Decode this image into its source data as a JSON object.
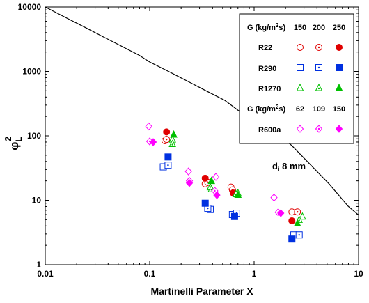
{
  "chart_data": {
    "type": "scatter",
    "xlabel": "Martinelli Parameter X",
    "ylabel_symbol": "φ",
    "ylabel_subscript": "L",
    "ylabel_superscript": "2",
    "xscale": "log",
    "yscale": "log",
    "xlim": [
      0.01,
      10
    ],
    "ylim": [
      1,
      10000
    ],
    "x_ticks": [
      {
        "value": 0.01,
        "label": "0.01"
      },
      {
        "value": 0.1,
        "label": "0.1"
      },
      {
        "value": 1,
        "label": "1"
      },
      {
        "value": 10,
        "label": "10"
      }
    ],
    "y_ticks": [
      {
        "value": 1,
        "label": "1"
      },
      {
        "value": 10,
        "label": "10"
      },
      {
        "value": 100,
        "label": "100"
      },
      {
        "value": 1000,
        "label": "1000"
      },
      {
        "value": 10000,
        "label": "10000"
      }
    ],
    "annotation": {
      "main": "d",
      "sub": "i",
      "rest": " 8 mm"
    },
    "curve": {
      "color": "#000000",
      "points": [
        [
          0.01,
          10000
        ],
        [
          0.0151,
          7079
        ],
        [
          0.0229,
          5012
        ],
        [
          0.0346,
          3548
        ],
        [
          0.0525,
          2512
        ],
        [
          0.0794,
          1778
        ],
        [
          0.1,
          1400
        ],
        [
          0.1513,
          1000
        ],
        [
          0.229,
          708
        ],
        [
          0.346,
          501
        ],
        [
          0.525,
          355
        ],
        [
          0.794,
          214
        ],
        [
          1.0,
          182
        ],
        [
          1.514,
          120
        ],
        [
          2.291,
          71
        ],
        [
          3.467,
          35.5
        ],
        [
          5.248,
          17.8
        ],
        [
          7.943,
          8.1
        ],
        [
          10.0,
          5.9
        ]
      ]
    },
    "legend": {
      "placement": "top-right",
      "header1": {
        "g": "G (kg/m",
        "sup": "2",
        "tail": "s)",
        "values": [
          "150",
          "200",
          "250"
        ]
      },
      "header2": {
        "g": "G (kg/m",
        "sup": "2",
        "tail": "s)",
        "values": [
          "62",
          "109",
          "150"
        ]
      },
      "rows": [
        {
          "name": "R22",
          "color": "#e00000",
          "shapes": [
            "circle-open",
            "circle-dot",
            "circle-filled"
          ]
        },
        {
          "name": "R290",
          "color": "#0030e0",
          "shapes": [
            "square-open",
            "square-dot",
            "square-filled"
          ]
        },
        {
          "name": "R1270",
          "color": "#00c000",
          "shapes": [
            "triangle-open",
            "triangle-dot",
            "triangle-filled"
          ]
        },
        {
          "name": "R600a",
          "color": "#ff00ff",
          "shapes": [
            "diamond-open",
            "diamond-dot",
            "diamond-filled"
          ]
        }
      ]
    },
    "series": [
      {
        "fluid": "R22",
        "G": "150",
        "color": "#e00000",
        "marker": "circle-open",
        "points": [
          [
            0.14,
            84
          ],
          [
            0.34,
            18
          ],
          [
            0.6,
            16
          ],
          [
            2.3,
            6.6
          ]
        ]
      },
      {
        "fluid": "R22",
        "G": "200",
        "color": "#e00000",
        "marker": "circle-dot",
        "points": [
          [
            0.145,
            88
          ],
          [
            0.36,
            19
          ],
          [
            0.62,
            14.5
          ],
          [
            2.6,
            6.6
          ]
        ]
      },
      {
        "fluid": "R22",
        "G": "250",
        "color": "#e00000",
        "marker": "circle-filled",
        "points": [
          [
            0.145,
            115
          ],
          [
            0.34,
            22
          ],
          [
            0.63,
            13
          ],
          [
            2.3,
            4.8
          ]
        ]
      },
      {
        "fluid": "R290",
        "G": "150",
        "color": "#0030e0",
        "marker": "square-open",
        "points": [
          [
            0.135,
            33
          ],
          [
            0.38,
            7.2
          ],
          [
            0.62,
            6
          ],
          [
            2.4,
            2.9
          ]
        ]
      },
      {
        "fluid": "R290",
        "G": "200",
        "color": "#0030e0",
        "marker": "square-dot",
        "points": [
          [
            0.15,
            35
          ],
          [
            0.36,
            7.5
          ],
          [
            0.68,
            6.3
          ],
          [
            2.7,
            2.9
          ]
        ]
      },
      {
        "fluid": "R290",
        "G": "250",
        "color": "#0030e0",
        "marker": "square-filled",
        "points": [
          [
            0.15,
            47
          ],
          [
            0.34,
            9
          ],
          [
            0.65,
            5.6
          ],
          [
            2.3,
            2.5
          ]
        ]
      },
      {
        "fluid": "R1270",
        "G": "150",
        "color": "#00c000",
        "marker": "triangle-open",
        "points": [
          [
            0.165,
            88
          ],
          [
            0.38,
            16
          ],
          [
            0.7,
            13
          ],
          [
            2.9,
            5.6
          ]
        ]
      },
      {
        "fluid": "R1270",
        "G": "200",
        "color": "#00c000",
        "marker": "triangle-dot",
        "points": [
          [
            0.165,
            75
          ],
          [
            0.39,
            15
          ],
          [
            0.67,
            12.5
          ],
          [
            2.7,
            5.0
          ]
        ]
      },
      {
        "fluid": "R1270",
        "G": "250",
        "color": "#00c000",
        "marker": "triangle-filled",
        "points": [
          [
            0.17,
            105
          ],
          [
            0.39,
            20
          ],
          [
            0.7,
            12.2
          ],
          [
            2.6,
            4.4
          ]
        ]
      },
      {
        "fluid": "R600a",
        "G": "62",
        "color": "#ff00ff",
        "marker": "diamond-open",
        "points": [
          [
            0.098,
            140
          ],
          [
            0.235,
            28
          ],
          [
            0.43,
            23
          ],
          [
            1.55,
            11
          ]
        ]
      },
      {
        "fluid": "R600a",
        "G": "109",
        "color": "#ff00ff",
        "marker": "diamond-dot",
        "points": [
          [
            0.1,
            82
          ],
          [
            0.24,
            20
          ],
          [
            0.42,
            14
          ],
          [
            1.7,
            6.5
          ]
        ]
      },
      {
        "fluid": "R600a",
        "G": "150",
        "color": "#ff00ff",
        "marker": "diamond-filled",
        "points": [
          [
            0.108,
            80
          ],
          [
            0.24,
            18.5
          ],
          [
            0.44,
            12
          ],
          [
            1.8,
            6.3
          ]
        ]
      }
    ]
  }
}
